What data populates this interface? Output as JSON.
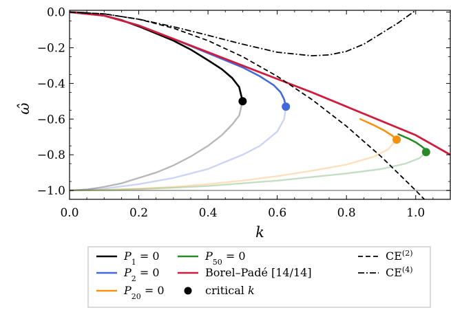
{
  "chart_data": {
    "type": "line",
    "xlabel": "k",
    "ylabel": "ω̂",
    "xlim": [
      0.0,
      1.1
    ],
    "ylim": [
      -1.05,
      0.01
    ],
    "xticks": [
      0.0,
      0.2,
      0.4,
      0.6,
      0.8,
      1.0
    ],
    "xtick_labels": [
      "0.0",
      "0.2",
      "0.4",
      "0.6",
      "0.8",
      "1.0"
    ],
    "yticks": [
      0.0,
      -0.2,
      -0.4,
      -0.6,
      -0.8,
      -1.0
    ],
    "ytick_labels": [
      "0.0",
      "−0.2",
      "−0.4",
      "−0.6",
      "−0.8",
      "−1.0"
    ],
    "grid": false,
    "legend_placement": "below",
    "colors": {
      "P1": "#000000",
      "P2": "#4169d8",
      "P20": "#f7920e",
      "P50": "#2a8a2a",
      "borel": "#d01c3c",
      "reference": "#999999"
    },
    "reference_line": -1.0,
    "series": [
      {
        "name": "P_1 = 0",
        "key": "P1",
        "upper": {
          "x": [
            0,
            0.05,
            0.1,
            0.15,
            0.2,
            0.25,
            0.3,
            0.35,
            0.4,
            0.44,
            0.47,
            0.49,
            0.5
          ],
          "y": [
            0,
            -0.005,
            -0.02,
            -0.045,
            -0.08,
            -0.12,
            -0.16,
            -0.21,
            -0.27,
            -0.32,
            -0.37,
            -0.42,
            -0.5
          ]
        },
        "lower": {
          "x": [
            0.5,
            0.49,
            0.47,
            0.44,
            0.4,
            0.35,
            0.3,
            0.25,
            0.2,
            0.15,
            0.1,
            0.05,
            0
          ],
          "y": [
            -0.5,
            -0.58,
            -0.63,
            -0.69,
            -0.75,
            -0.81,
            -0.86,
            -0.9,
            -0.93,
            -0.96,
            -0.98,
            -0.995,
            -1.0
          ]
        },
        "critical": {
          "x": 0.5,
          "y": -0.5
        }
      },
      {
        "name": "P_2 = 0",
        "key": "P2",
        "upper": {
          "x": [
            0,
            0.1,
            0.2,
            0.3,
            0.4,
            0.45,
            0.5,
            0.55,
            0.59,
            0.61,
            0.62,
            0.625
          ],
          "y": [
            0,
            -0.02,
            -0.075,
            -0.15,
            -0.23,
            -0.27,
            -0.31,
            -0.36,
            -0.41,
            -0.45,
            -0.49,
            -0.53
          ]
        },
        "lower": {
          "x": [
            0.625,
            0.62,
            0.6,
            0.55,
            0.5,
            0.45,
            0.4,
            0.3,
            0.2,
            0.1,
            0
          ],
          "y": [
            -0.53,
            -0.6,
            -0.67,
            -0.75,
            -0.8,
            -0.84,
            -0.88,
            -0.93,
            -0.965,
            -0.99,
            -1.0
          ]
        },
        "critical": {
          "x": 0.625,
          "y": -0.53
        }
      },
      {
        "name": "P_20 = 0",
        "key": "P20",
        "upper": {
          "x": [
            0.84,
            0.88,
            0.91,
            0.93,
            0.94,
            0.945
          ],
          "y": [
            -0.6,
            -0.635,
            -0.665,
            -0.69,
            -0.705,
            -0.715
          ]
        },
        "lower": {
          "x": [
            0.945,
            0.92,
            0.88,
            0.8,
            0.7,
            0.6,
            0.5,
            0.4,
            0.3,
            0.2,
            0.1,
            0
          ],
          "y": [
            -0.715,
            -0.77,
            -0.81,
            -0.855,
            -0.89,
            -0.92,
            -0.945,
            -0.965,
            -0.98,
            -0.99,
            -0.997,
            -1.0
          ]
        },
        "critical": {
          "x": 0.945,
          "y": -0.715
        }
      },
      {
        "name": "P_50 = 0",
        "key": "P50",
        "upper": {
          "x": [
            0.95,
            0.98,
            1.0,
            1.015,
            1.025,
            1.03
          ],
          "y": [
            -0.685,
            -0.71,
            -0.73,
            -0.75,
            -0.765,
            -0.785
          ]
        },
        "lower": {
          "x": [
            1.03,
            1.01,
            0.97,
            0.9,
            0.8,
            0.7,
            0.6,
            0.5,
            0.4,
            0.3,
            0.2,
            0.1,
            0
          ],
          "y": [
            -0.785,
            -0.82,
            -0.85,
            -0.88,
            -0.905,
            -0.925,
            -0.945,
            -0.96,
            -0.975,
            -0.985,
            -0.993,
            -0.998,
            -1.0
          ]
        },
        "critical": {
          "x": 1.03,
          "y": -0.785
        }
      },
      {
        "name": "Borel–Padé [14/14]",
        "key": "borel",
        "x": [
          0,
          0.1,
          0.2,
          0.3,
          0.4,
          0.5,
          0.6,
          0.7,
          0.8,
          0.9,
          1.0,
          1.1
        ],
        "y": [
          0,
          -0.02,
          -0.075,
          -0.15,
          -0.225,
          -0.3,
          -0.375,
          -0.45,
          -0.53,
          -0.61,
          -0.69,
          -0.8
        ]
      },
      {
        "name": "CE^(2)",
        "key": "ce2",
        "dash": "dashed",
        "x": [
          0,
          0.1,
          0.2,
          0.3,
          0.4,
          0.5,
          0.6,
          0.7,
          0.8,
          0.9,
          1.0,
          1.03
        ],
        "y": [
          0,
          -0.01,
          -0.04,
          -0.09,
          -0.16,
          -0.25,
          -0.36,
          -0.49,
          -0.64,
          -0.81,
          -1.0,
          -1.06
        ]
      },
      {
        "name": "CE^(4)",
        "key": "ce4",
        "dash": "dashdot",
        "x": [
          0,
          0.1,
          0.2,
          0.3,
          0.4,
          0.5,
          0.6,
          0.7,
          0.75,
          0.8,
          0.85,
          0.9,
          0.95,
          1.0
        ],
        "y": [
          0,
          -0.01,
          -0.04,
          -0.082,
          -0.13,
          -0.18,
          -0.225,
          -0.245,
          -0.24,
          -0.22,
          -0.18,
          -0.12,
          -0.06,
          0.01
        ]
      }
    ],
    "legend": [
      {
        "label": "P_1 = 0",
        "key": "P1",
        "style": "line"
      },
      {
        "label": "P_2 = 0",
        "key": "P2",
        "style": "line"
      },
      {
        "label": "P_20 = 0",
        "key": "P20",
        "style": "line"
      },
      {
        "label": "P_50 = 0",
        "key": "P50",
        "style": "line"
      },
      {
        "label": "Borel–Padé [14/14]",
        "key": "borel",
        "style": "line"
      },
      {
        "label": "critical k",
        "key": "critical",
        "style": "dot"
      },
      {
        "label": "CE^(2)",
        "key": "ce2",
        "style": "dashed"
      },
      {
        "label": "CE^(4)",
        "key": "ce4",
        "style": "dashdot"
      }
    ]
  }
}
